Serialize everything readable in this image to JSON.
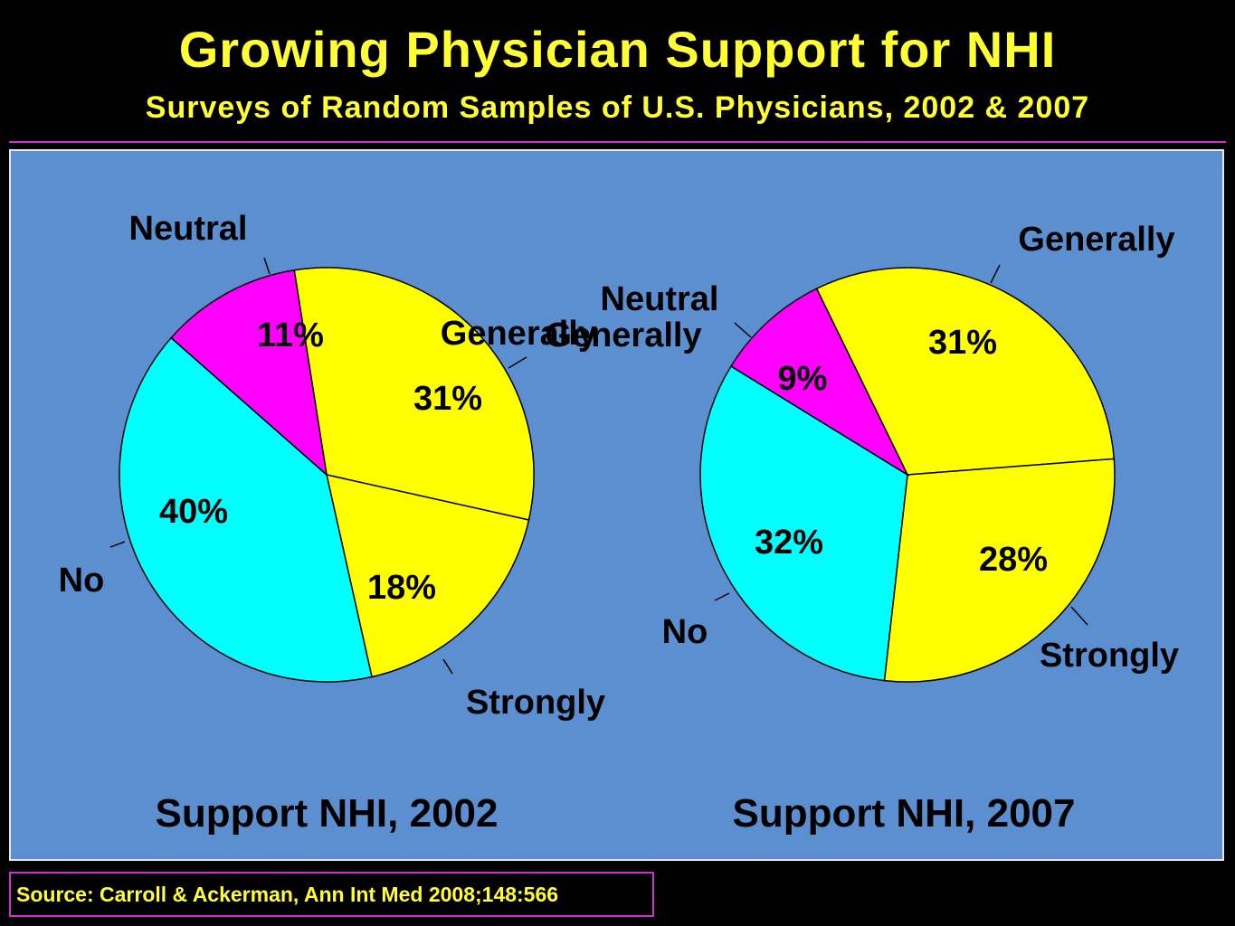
{
  "title": "Growing Physician Support for NHI",
  "subtitle": "Surveys of Random Samples of U.S. Physicians, 2002 & 2007",
  "source": "Source: Carroll & Ackerman, Ann Int Med 2008;148:566",
  "colors": {
    "title": "#FFFF33",
    "panel": "#5B8FD0",
    "generally": "#FFFF00",
    "strongly": "#FFFF00",
    "neutral": "#FF00FF",
    "no": "#00FFFF",
    "rule": "#CC33CC"
  },
  "chart_data": [
    {
      "type": "pie",
      "title": "Support NHI, 2002",
      "slices": [
        {
          "label": "Generally",
          "value": 31,
          "value_label": "31%",
          "color": "#FFFF00"
        },
        {
          "label": "Strongly",
          "value": 18,
          "value_label": "18%",
          "color": "#FFFF00"
        },
        {
          "label": "No",
          "value": 40,
          "value_label": "40%",
          "color": "#00FFFF"
        },
        {
          "label": "Neutral",
          "value": 11,
          "value_label": "11%",
          "color": "#FF00FF"
        }
      ]
    },
    {
      "type": "pie",
      "title": "Support NHI, 2007",
      "slices": [
        {
          "label": "Generally",
          "value": 31,
          "value_label": "31%",
          "color": "#FFFF00"
        },
        {
          "label": "Strongly",
          "value": 28,
          "value_label": "28%",
          "color": "#FFFF00"
        },
        {
          "label": "No",
          "value": 32,
          "value_label": "32%",
          "color": "#00FFFF"
        },
        {
          "label": "Neutral",
          "value": 9,
          "value_label": "9%",
          "color": "#FF00FF"
        }
      ]
    }
  ]
}
